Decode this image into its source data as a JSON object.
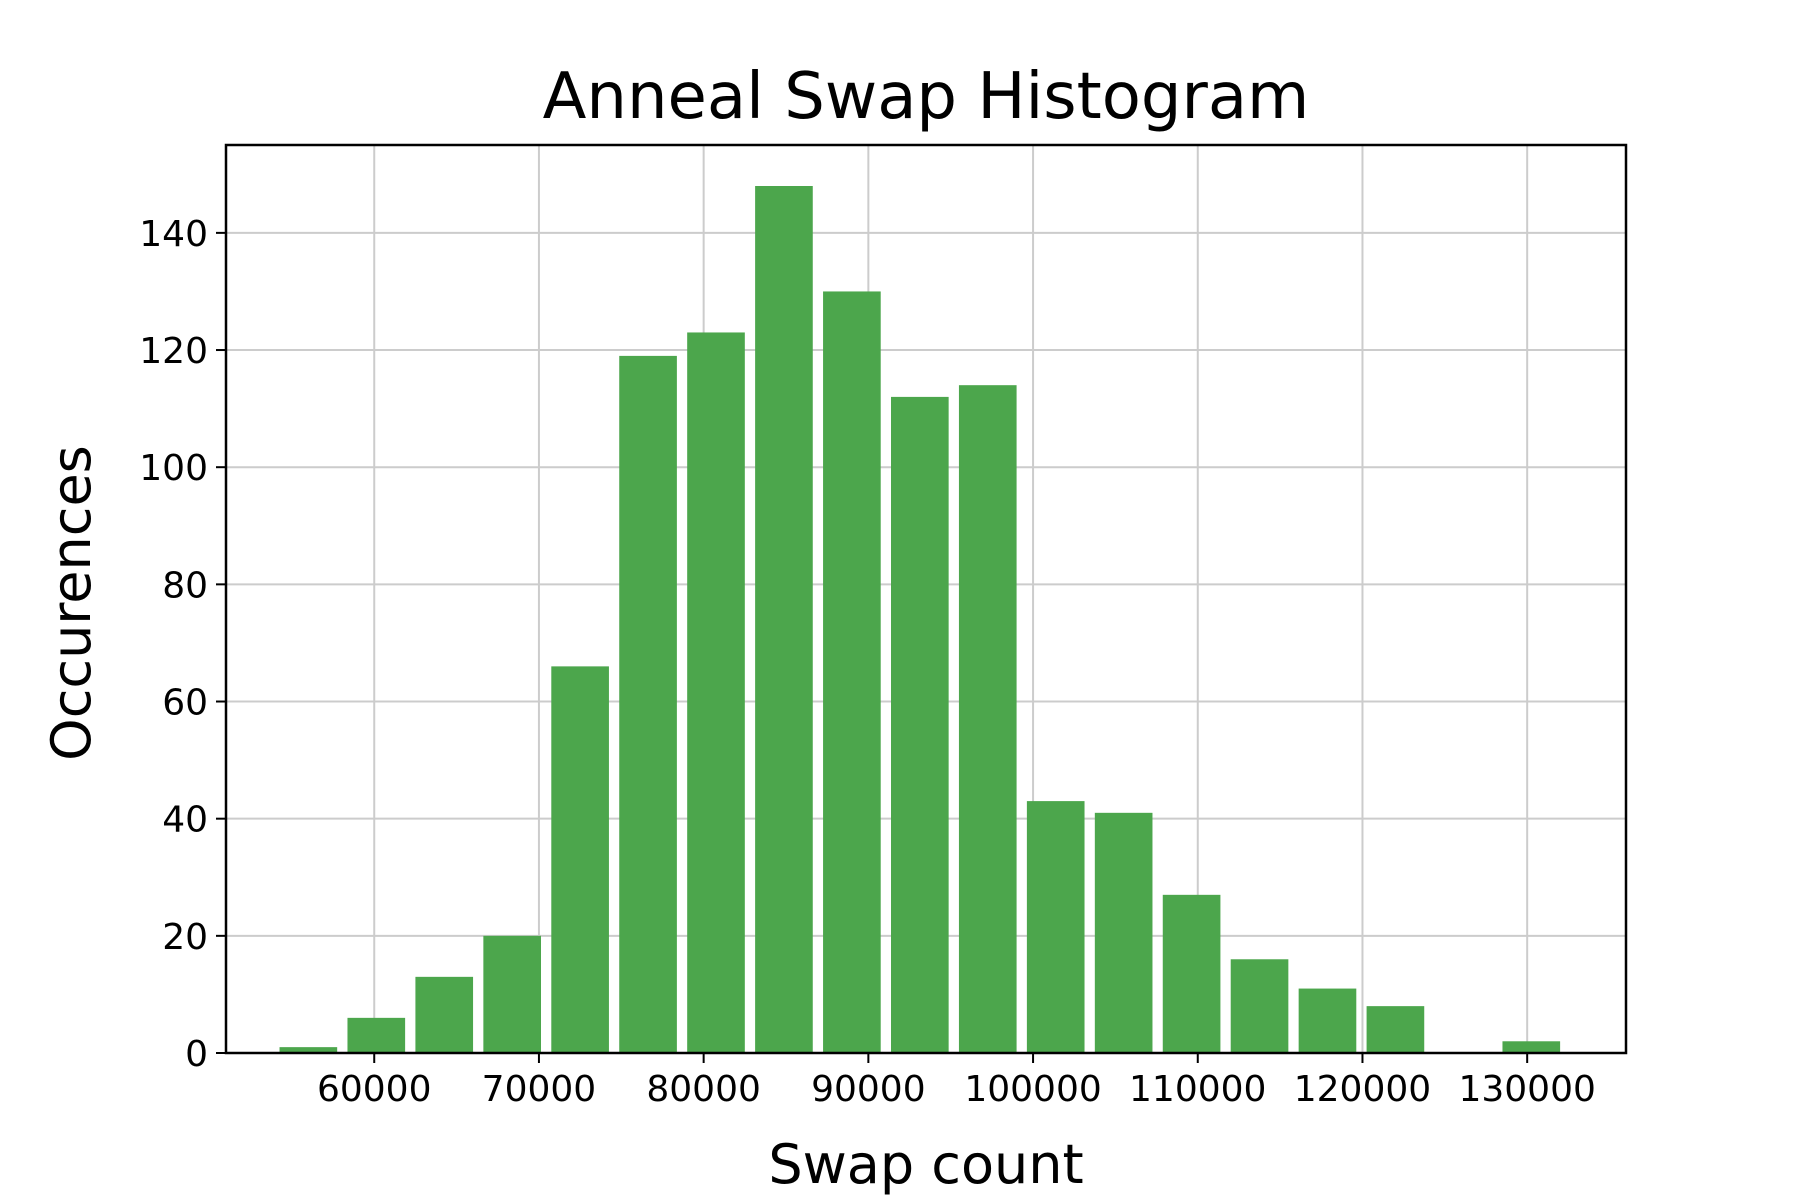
{
  "chart_data": {
    "type": "bar",
    "title": "Anneal Swap Histogram",
    "xlabel": "Swap count",
    "ylabel": "Occurences",
    "xlim": [
      51000,
      136000
    ],
    "ylim": [
      0,
      155
    ],
    "xticks": [
      60000,
      70000,
      80000,
      90000,
      100000,
      110000,
      120000,
      130000
    ],
    "xtick_labels": [
      "60000",
      "70000",
      "80000",
      "90000",
      "100000",
      "110000",
      "120000",
      "130000"
    ],
    "yticks": [
      0,
      20,
      40,
      60,
      80,
      100,
      120,
      140
    ],
    "ytick_labels": [
      "0",
      "20",
      "40",
      "60",
      "80",
      "100",
      "120",
      "140"
    ],
    "bin_width": 4125,
    "bar_width": 3500,
    "bins": [
      {
        "x": 56000,
        "count": 1
      },
      {
        "x": 60125,
        "count": 6
      },
      {
        "x": 64250,
        "count": 13
      },
      {
        "x": 68375,
        "count": 20
      },
      {
        "x": 72500,
        "count": 66
      },
      {
        "x": 76625,
        "count": 119
      },
      {
        "x": 80750,
        "count": 123
      },
      {
        "x": 84875,
        "count": 148
      },
      {
        "x": 89000,
        "count": 130
      },
      {
        "x": 93125,
        "count": 112
      },
      {
        "x": 97250,
        "count": 114
      },
      {
        "x": 101375,
        "count": 43
      },
      {
        "x": 105500,
        "count": 41
      },
      {
        "x": 109625,
        "count": 27
      },
      {
        "x": 113750,
        "count": 16
      },
      {
        "x": 117875,
        "count": 11
      },
      {
        "x": 122000,
        "count": 8
      },
      {
        "x": 126125,
        "count": 0
      },
      {
        "x": 130250,
        "count": 2
      }
    ],
    "bar_color": "#4ca64c",
    "grid": true,
    "legend": "none"
  }
}
